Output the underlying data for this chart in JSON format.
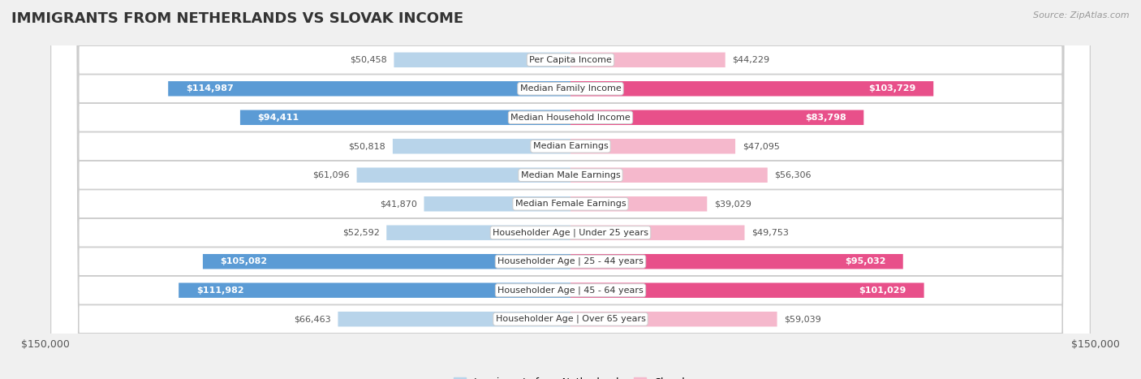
{
  "title": "IMMIGRANTS FROM NETHERLANDS VS SLOVAK INCOME",
  "source": "Source: ZipAtlas.com",
  "categories": [
    "Per Capita Income",
    "Median Family Income",
    "Median Household Income",
    "Median Earnings",
    "Median Male Earnings",
    "Median Female Earnings",
    "Householder Age | Under 25 years",
    "Householder Age | 25 - 44 years",
    "Householder Age | 45 - 64 years",
    "Householder Age | Over 65 years"
  ],
  "netherlands_values": [
    50458,
    114987,
    94411,
    50818,
    61096,
    41870,
    52592,
    105082,
    111982,
    66463
  ],
  "slovak_values": [
    44229,
    103729,
    83798,
    47095,
    56306,
    39029,
    49753,
    95032,
    101029,
    59039
  ],
  "netherlands_light_color": "#b8d4ea",
  "netherlands_dark_color": "#5b9bd5",
  "slovak_light_color": "#f5b8cc",
  "slovak_dark_color": "#e8508a",
  "max_value": 150000,
  "bg_color": "#f0f0f0",
  "row_bg_color": "#ffffff",
  "title_fontsize": 13,
  "label_fontsize": 8,
  "value_fontsize": 8,
  "legend_label_netherlands": "Immigrants from Netherlands",
  "legend_label_slovak": "Slovak",
  "threshold_dark": 70000
}
